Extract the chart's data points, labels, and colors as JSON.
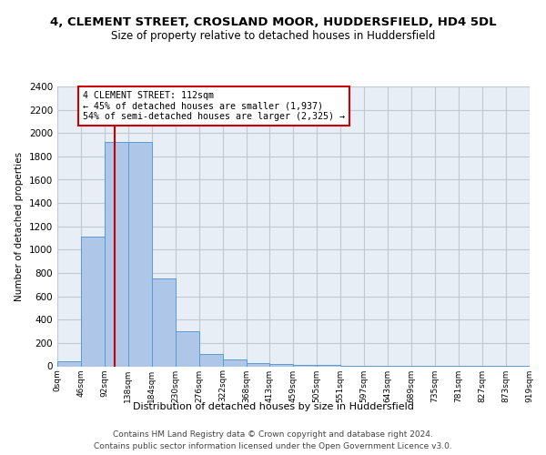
{
  "title": "4, CLEMENT STREET, CROSLAND MOOR, HUDDERSFIELD, HD4 5DL",
  "subtitle": "Size of property relative to detached houses in Huddersfield",
  "xlabel": "Distribution of detached houses by size in Huddersfield",
  "ylabel": "Number of detached properties",
  "footer_line1": "Contains HM Land Registry data © Crown copyright and database right 2024.",
  "footer_line2": "Contains public sector information licensed under the Open Government Licence v3.0.",
  "bin_edges": [
    0,
    46,
    92,
    138,
    184,
    230,
    276,
    322,
    368,
    413,
    459,
    505,
    551,
    597,
    643,
    689,
    735,
    781,
    827,
    873,
    919
  ],
  "bar_heights": [
    40,
    1110,
    1920,
    1920,
    750,
    300,
    105,
    55,
    30,
    20,
    10,
    8,
    5,
    5,
    4,
    3,
    3,
    2,
    2,
    2
  ],
  "bar_color": "#aec6e8",
  "bar_edge_color": "#5b9bd5",
  "property_size": 112,
  "annotation_title": "4 CLEMENT STREET: 112sqm",
  "annotation_line1": "← 45% of detached houses are smaller (1,937)",
  "annotation_line2": "54% of semi-detached houses are larger (2,325) →",
  "red_line_color": "#cc0000",
  "annotation_box_color": "#ffffff",
  "annotation_box_edge": "#cc0000",
  "ylim": [
    0,
    2400
  ],
  "yticks": [
    0,
    200,
    400,
    600,
    800,
    1000,
    1200,
    1400,
    1600,
    1800,
    2000,
    2200,
    2400
  ],
  "tick_labels": [
    "0sqm",
    "46sqm",
    "92sqm",
    "138sqm",
    "184sqm",
    "230sqm",
    "276sqm",
    "322sqm",
    "368sqm",
    "413sqm",
    "459sqm",
    "505sqm",
    "551sqm",
    "597sqm",
    "643sqm",
    "689sqm",
    "735sqm",
    "781sqm",
    "827sqm",
    "873sqm",
    "919sqm"
  ],
  "bg_color": "#e8eef5"
}
